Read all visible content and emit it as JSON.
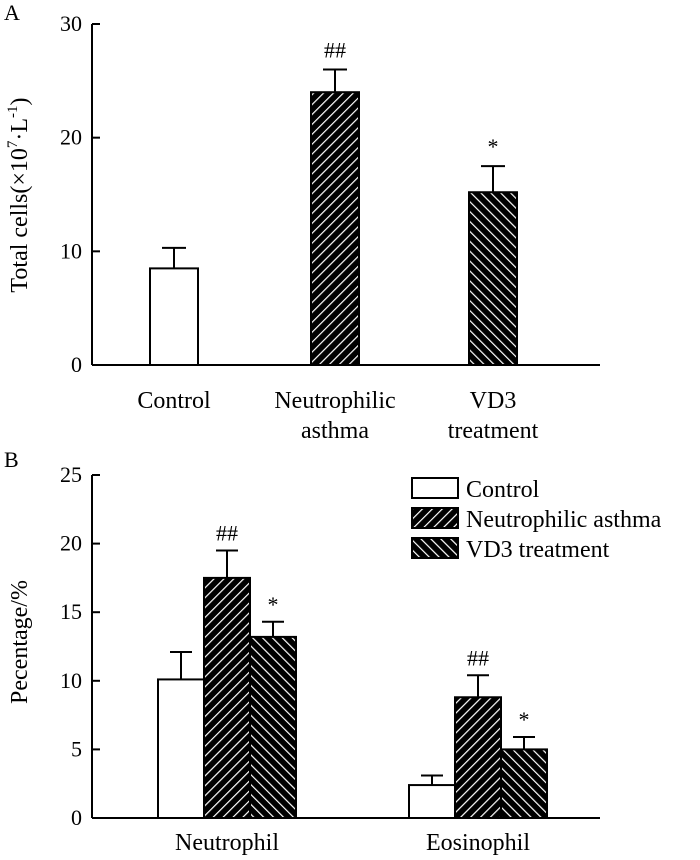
{
  "chart_data": [
    {
      "type": "bar",
      "panel": "A",
      "ylabel_main": "Total cells(×10",
      "ylabel_exp1": "7",
      "ylabel_mid": "·L",
      "ylabel_exp2": "-1",
      "ylabel_end": ")",
      "ylim": [
        0,
        30
      ],
      "yticks": [
        "0",
        "10",
        "20",
        "30"
      ],
      "categories": [
        {
          "line1": "Control",
          "line2": ""
        },
        {
          "line1": "Neutrophilic",
          "line2": "asthma"
        },
        {
          "line1": "VD3",
          "line2": "treatment"
        }
      ],
      "values": [
        8.5,
        24.0,
        15.2
      ],
      "errors": [
        1.8,
        2.0,
        2.3
      ],
      "patterns": [
        "none",
        "hatch-forward",
        "hatch-back"
      ],
      "markers": [
        "",
        "##",
        "*"
      ]
    },
    {
      "type": "bar",
      "panel": "B",
      "ylabel": "Pecentage/%",
      "ylim": [
        0,
        25
      ],
      "yticks": [
        "0",
        "5",
        "10",
        "15",
        "20",
        "25"
      ],
      "categories": [
        "Neutrophil",
        "Eosinophil"
      ],
      "series": [
        {
          "name": "Control",
          "pattern": "none",
          "values": [
            10.1,
            2.4
          ],
          "errors": [
            2.0,
            0.7
          ],
          "markers": [
            "",
            ""
          ]
        },
        {
          "name": "Neutrophilic asthma",
          "pattern": "hatch-forward",
          "values": [
            17.5,
            8.8
          ],
          "errors": [
            2.0,
            1.6
          ],
          "markers": [
            "##",
            "##"
          ]
        },
        {
          "name": "VD3 treatment",
          "pattern": "hatch-back",
          "values": [
            13.2,
            5.0
          ],
          "errors": [
            1.1,
            0.9
          ],
          "markers": [
            "*",
            "*"
          ]
        }
      ],
      "legend_position": "top-right"
    }
  ]
}
